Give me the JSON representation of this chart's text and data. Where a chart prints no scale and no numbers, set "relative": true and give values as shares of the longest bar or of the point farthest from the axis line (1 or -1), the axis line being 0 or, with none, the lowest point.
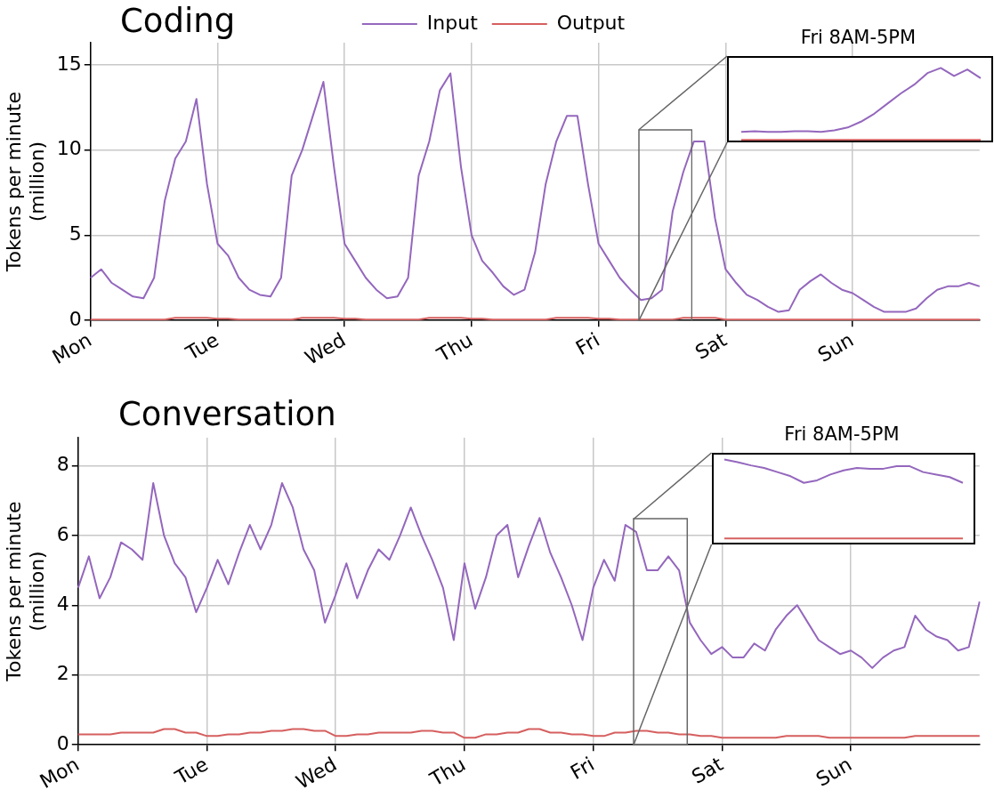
{
  "chart_data": [
    {
      "type": "line",
      "title": "Coding",
      "ylabel": "Tokens per minute\n(million)",
      "legend": "top",
      "grid": true,
      "categories": [
        "Mon",
        null,
        null,
        null,
        null,
        null,
        null,
        null,
        null,
        null,
        null,
        null,
        "Tue",
        null,
        null,
        null,
        null,
        null,
        null,
        null,
        null,
        null,
        null,
        null,
        "Wed",
        null,
        null,
        null,
        null,
        null,
        null,
        null,
        null,
        null,
        null,
        null,
        "Thu",
        null,
        null,
        null,
        null,
        null,
        null,
        null,
        null,
        null,
        null,
        null,
        "Fri",
        null,
        null,
        null,
        null,
        null,
        null,
        null,
        null,
        null,
        null,
        null,
        "Sat",
        null,
        null,
        null,
        null,
        null,
        null,
        null,
        null,
        null,
        null,
        null,
        "Sun",
        null,
        null,
        null,
        null,
        null,
        null,
        null,
        null,
        null,
        null,
        null,
        null
      ],
      "ylim": [
        0,
        16.3
      ],
      "yticks": [
        0,
        5,
        10,
        15
      ],
      "series": [
        {
          "name": "Input",
          "color": "#9467bd",
          "values": [
            2.5,
            3.0,
            2.2,
            1.8,
            1.4,
            1.3,
            2.5,
            7,
            9.5,
            10.5,
            13,
            8,
            4.5,
            3.8,
            2.5,
            1.8,
            1.5,
            1.4,
            2.5,
            8.5,
            10,
            12,
            14,
            9,
            4.5,
            3.5,
            2.5,
            1.8,
            1.3,
            1.4,
            2.5,
            8.5,
            10.5,
            13.5,
            14.5,
            9,
            5,
            3.5,
            2.8,
            2,
            1.5,
            1.8,
            4,
            8,
            10.5,
            12,
            12,
            8,
            4.5,
            3.5,
            2.5,
            1.8,
            1.2,
            1.3,
            1.8,
            6.4,
            8.7,
            10.5,
            10.5,
            6,
            3,
            2.2,
            1.5,
            1.2,
            0.8,
            0.5,
            0.6,
            1.8,
            2.3,
            2.7,
            2.2,
            1.8,
            1.6,
            1.2,
            0.8,
            0.5,
            0.5,
            0.5,
            0.7,
            1.3,
            1.8,
            2,
            2,
            2.2,
            2.0
          ]
        },
        {
          "name": "Output",
          "color": "#d65f5f",
          "values": [
            0.05,
            0.05,
            0.05,
            0.05,
            0.05,
            0.05,
            0.05,
            0.05,
            0.15,
            0.15,
            0.15,
            0.15,
            0.1,
            0.1,
            0.05,
            0.05,
            0.05,
            0.05,
            0.05,
            0.05,
            0.15,
            0.15,
            0.15,
            0.15,
            0.1,
            0.1,
            0.05,
            0.05,
            0.05,
            0.05,
            0.05,
            0.05,
            0.15,
            0.15,
            0.15,
            0.15,
            0.1,
            0.1,
            0.05,
            0.05,
            0.05,
            0.05,
            0.05,
            0.05,
            0.15,
            0.15,
            0.15,
            0.15,
            0.1,
            0.1,
            0.05,
            0.05,
            0.05,
            0.05,
            0.05,
            0.05,
            0.15,
            0.15,
            0.15,
            0.15,
            0.05,
            0.05,
            0.05,
            0.05,
            0.05,
            0.05,
            0.05,
            0.05,
            0.05,
            0.05,
            0.05,
            0.05,
            0.05,
            0.05,
            0.05,
            0.05,
            0.05,
            0.05,
            0.05,
            0.05,
            0.05,
            0.05,
            0.05,
            0.05,
            0.05
          ]
        }
      ]
    },
    {
      "type": "line",
      "title": "Fri 8AM-5PM",
      "tick_labels": false,
      "relative": true,
      "categories": [
        null,
        null,
        null,
        null,
        null,
        null,
        null,
        null,
        null,
        null,
        null,
        null,
        null,
        null,
        null,
        null,
        null,
        null,
        null
      ],
      "series": [
        {
          "color": "#9467bd",
          "values": [
            0.12,
            0.13,
            0.12,
            0.12,
            0.13,
            0.13,
            0.12,
            0.14,
            0.18,
            0.26,
            0.37,
            0.51,
            0.65,
            0.77,
            0.93,
            1,
            0.89,
            0.98,
            0.86
          ]
        },
        {
          "color": "#d65f5f",
          "values": [
            0.01,
            0.01,
            0.01,
            0.01,
            0.01,
            0.01,
            0.01,
            0.01,
            0.01,
            0.01,
            0.01,
            0.01,
            0.01,
            0.01,
            0.01,
            0.01,
            0.01,
            0.01,
            0.01
          ]
        }
      ]
    },
    {
      "type": "line",
      "title": "Conversation",
      "ylabel": "Tokens per minute\n(million)",
      "grid": true,
      "categories": [
        "Mon",
        null,
        null,
        null,
        null,
        null,
        null,
        null,
        null,
        null,
        null,
        null,
        "Tue",
        null,
        null,
        null,
        null,
        null,
        null,
        null,
        null,
        null,
        null,
        null,
        "Wed",
        null,
        null,
        null,
        null,
        null,
        null,
        null,
        null,
        null,
        null,
        null,
        "Thu",
        null,
        null,
        null,
        null,
        null,
        null,
        null,
        null,
        null,
        null,
        null,
        "Fri",
        null,
        null,
        null,
        null,
        null,
        null,
        null,
        null,
        null,
        null,
        null,
        "Sat",
        null,
        null,
        null,
        null,
        null,
        null,
        null,
        null,
        null,
        null,
        null,
        "Sun",
        null,
        null,
        null,
        null,
        null,
        null,
        null,
        null,
        null,
        null,
        null,
        null
      ],
      "ylim": [
        0,
        8.8
      ],
      "yticks": [
        0,
        2,
        4,
        6,
        8
      ],
      "series": [
        {
          "color": "#9467bd",
          "values": [
            4.5,
            5.4,
            4.2,
            4.8,
            5.8,
            5.6,
            5.3,
            7.5,
            6.0,
            5.2,
            4.8,
            3.8,
            4.5,
            5.3,
            4.6,
            5.5,
            6.3,
            5.6,
            6.3,
            7.5,
            6.8,
            5.6,
            5.0,
            3.5,
            4.3,
            5.2,
            4.2,
            5.0,
            5.6,
            5.3,
            6.0,
            6.8,
            6.0,
            5.3,
            4.5,
            3.0,
            5.2,
            3.9,
            4.8,
            6.0,
            6.3,
            4.8,
            5.7,
            6.5,
            5.5,
            4.8,
            4.0,
            3.0,
            4.5,
            5.3,
            4.7,
            6.3,
            6.1,
            5.0,
            5.0,
            5.4,
            5.0,
            3.5,
            3.0,
            2.6,
            2.8,
            2.5,
            2.5,
            2.9,
            2.7,
            3.3,
            3.7,
            4.0,
            3.5,
            3.0,
            2.8,
            2.6,
            2.7,
            2.5,
            2.2,
            2.5,
            2.7,
            2.8,
            3.7,
            3.3,
            3.1,
            3.0,
            2.7,
            2.8,
            4.1
          ]
        },
        {
          "color": "#d65f5f",
          "values": [
            0.3,
            0.3,
            0.3,
            0.3,
            0.35,
            0.35,
            0.35,
            0.35,
            0.45,
            0.45,
            0.35,
            0.35,
            0.25,
            0.25,
            0.3,
            0.3,
            0.35,
            0.35,
            0.4,
            0.4,
            0.45,
            0.45,
            0.4,
            0.4,
            0.25,
            0.25,
            0.3,
            0.3,
            0.35,
            0.35,
            0.35,
            0.35,
            0.4,
            0.4,
            0.35,
            0.35,
            0.2,
            0.2,
            0.3,
            0.3,
            0.35,
            0.35,
            0.45,
            0.45,
            0.35,
            0.35,
            0.3,
            0.3,
            0.25,
            0.25,
            0.35,
            0.35,
            0.4,
            0.4,
            0.35,
            0.35,
            0.3,
            0.3,
            0.25,
            0.25,
            0.2,
            0.2,
            0.2,
            0.2,
            0.2,
            0.2,
            0.25,
            0.25,
            0.25,
            0.25,
            0.2,
            0.2,
            0.2,
            0.2,
            0.2,
            0.2,
            0.2,
            0.2,
            0.25,
            0.25,
            0.25,
            0.25,
            0.25,
            0.25,
            0.25
          ]
        }
      ]
    },
    {
      "type": "line",
      "title": "Fri 8AM-5PM",
      "tick_labels": false,
      "relative": true,
      "categories": [
        null,
        null,
        null,
        null,
        null,
        null,
        null,
        null,
        null,
        null,
        null,
        null,
        null,
        null,
        null,
        null,
        null,
        null,
        null
      ],
      "series": [
        {
          "color": "#9467bd",
          "values": [
            1,
            0.97,
            0.93,
            0.9,
            0.85,
            0.8,
            0.72,
            0.75,
            0.82,
            0.87,
            0.9,
            0.89,
            0.89,
            0.92,
            0.92,
            0.85,
            0.82,
            0.79,
            0.72
          ]
        },
        {
          "color": "#d65f5f",
          "values": [
            0.05,
            0.05,
            0.05,
            0.05,
            0.05,
            0.05,
            0.05,
            0.05,
            0.05,
            0.05,
            0.05,
            0.05,
            0.05,
            0.05,
            0.05,
            0.05,
            0.05,
            0.05,
            0.05
          ]
        }
      ]
    }
  ]
}
